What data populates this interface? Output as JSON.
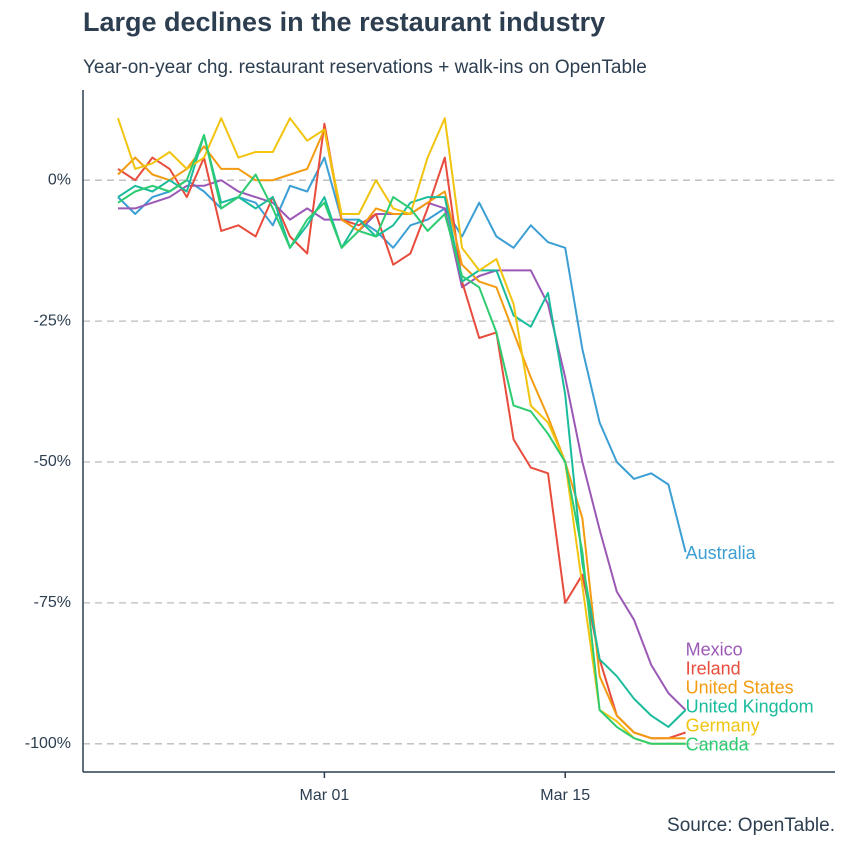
{
  "chart_data": {
    "type": "line",
    "title": "Large declines in the restaurant industry",
    "subtitle": "Year-on-year chg. restaurant reservations + walk-ins on OpenTable",
    "source": "Source: OpenTable.",
    "x": [
      "Feb 18",
      "Feb 19",
      "Feb 20",
      "Feb 21",
      "Feb 22",
      "Feb 23",
      "Feb 24",
      "Feb 25",
      "Feb 26",
      "Feb 27",
      "Feb 28",
      "Feb 29",
      "Mar 01",
      "Mar 02",
      "Mar 03",
      "Mar 04",
      "Mar 05",
      "Mar 06",
      "Mar 07",
      "Mar 08",
      "Mar 09",
      "Mar 10",
      "Mar 11",
      "Mar 12",
      "Mar 13",
      "Mar 14",
      "Mar 15",
      "Mar 16",
      "Mar 17",
      "Mar 18",
      "Mar 19",
      "Mar 20",
      "Mar 21",
      "Mar 22"
    ],
    "xticks": [
      "Mar 01",
      "Mar 15"
    ],
    "ylim": [
      -105,
      16
    ],
    "yticks": [
      {
        "value": 0,
        "label": "0%"
      },
      {
        "value": -25,
        "label": "-25%"
      },
      {
        "value": -50,
        "label": "-50%"
      },
      {
        "value": -75,
        "label": "-75%"
      },
      {
        "value": -100,
        "label": "-100%"
      }
    ],
    "grid": true,
    "series": [
      {
        "name": "Australia",
        "color": "#3c9fd4",
        "values": [
          -3,
          -6,
          -3,
          -2,
          0,
          -2,
          -5,
          -3,
          -4,
          -8,
          -1,
          -2,
          4,
          -7,
          -7,
          -9,
          -12,
          -8,
          -7,
          -5,
          -10,
          -4,
          -10,
          -12,
          -8,
          -11,
          -12,
          -30,
          -43,
          -50,
          -53,
          -52,
          -54,
          -66
        ]
      },
      {
        "name": "Mexico",
        "color": "#9b59b6",
        "values": [
          -5,
          -5,
          -4,
          -3,
          -1,
          -1,
          0,
          -2,
          -3,
          -4,
          -7,
          -5,
          -7,
          -7,
          -9,
          -6,
          -6,
          -6,
          -4,
          -5,
          -19,
          -17,
          -16,
          -16,
          -16,
          -22,
          -35,
          -50,
          -62,
          -73,
          -78,
          -86,
          -91,
          -94
        ]
      },
      {
        "name": "Ireland",
        "color": "#e74c3c",
        "values": [
          2,
          0,
          4,
          2,
          -3,
          4,
          -9,
          -8,
          -10,
          -3,
          -10,
          -13,
          10,
          -7,
          -8,
          -6,
          -15,
          -13,
          -5,
          4,
          -18,
          -28,
          -27,
          -46,
          -51,
          -52,
          -75,
          -70,
          -85,
          -95,
          -98,
          -99,
          -99,
          -98
        ]
      },
      {
        "name": "United States",
        "color": "#f39c12",
        "values": [
          1,
          4,
          1,
          0,
          2,
          6,
          2,
          2,
          0,
          0,
          1,
          2,
          9,
          -7,
          -9,
          -5,
          -6,
          -6,
          -4,
          -2,
          -15,
          -18,
          -19,
          -27,
          -35,
          -42,
          -50,
          -60,
          -88,
          -95,
          -98,
          -99,
          -99,
          -99
        ]
      },
      {
        "name": "United Kingdom",
        "color": "#1abc9c",
        "values": [
          -3,
          -1,
          -2,
          0,
          -2,
          8,
          -4,
          -3,
          -5,
          -3,
          -12,
          -8,
          -3,
          -12,
          -7,
          -10,
          -8,
          -4,
          -3,
          -3,
          -18,
          -16,
          -16,
          -24,
          -26,
          -20,
          -38,
          -68,
          -85,
          -88,
          -92,
          -95,
          -97,
          -94
        ]
      },
      {
        "name": "Germany",
        "color": "#f1c40f",
        "values": [
          11,
          2,
          3,
          5,
          2,
          4,
          11,
          4,
          5,
          5,
          11,
          7,
          9,
          -6,
          -6,
          0,
          -5,
          -6,
          4,
          11,
          -12,
          -16,
          -14,
          -22,
          -40,
          -43,
          -50,
          -72,
          -94,
          -96,
          -99,
          -100,
          -100,
          -100
        ]
      },
      {
        "name": "Canada",
        "color": "#2ecc71",
        "values": [
          -4,
          -2,
          -1,
          -2,
          0,
          8,
          -5,
          -3,
          1,
          -5,
          -12,
          -7,
          -4,
          -12,
          -9,
          -10,
          -3,
          -5,
          -9,
          -6,
          -17,
          -19,
          -27,
          -40,
          -41,
          -45,
          -50,
          -66,
          -94,
          -97,
          -99,
          -100,
          -100,
          -100
        ]
      }
    ]
  }
}
